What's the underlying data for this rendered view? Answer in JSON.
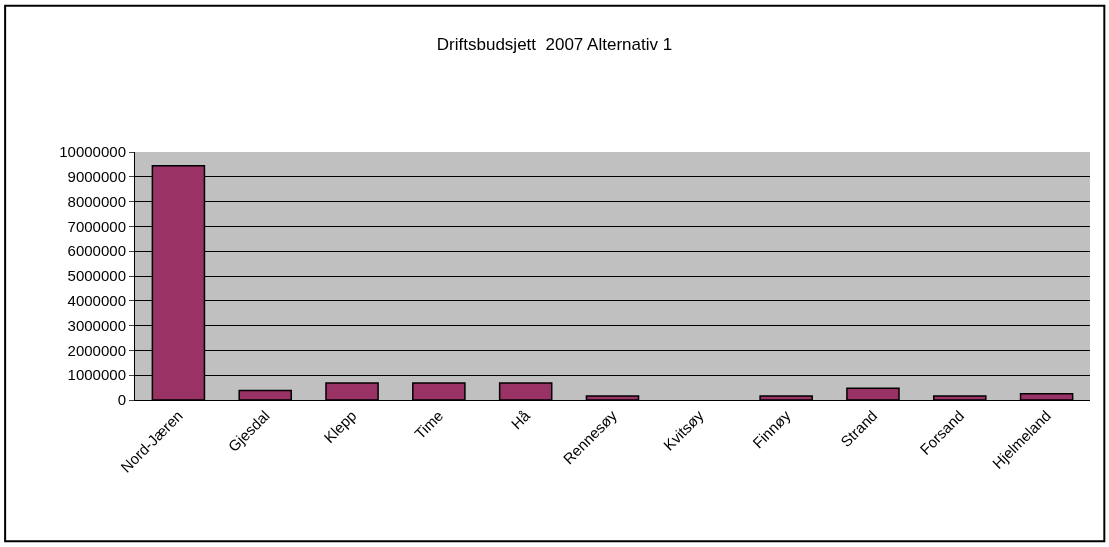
{
  "chart_data": {
    "type": "bar",
    "title": "Driftsbudsjett  2007 Alternativ 1",
    "categories": [
      "Nord-Jæren",
      "Gjesdal",
      "Klepp",
      "Time",
      "Hå",
      "Rennesøy",
      "Kvitsøy",
      "Finnøy",
      "Strand",
      "Forsand",
      "Hjelmeland"
    ],
    "values": [
      9450000,
      380000,
      690000,
      690000,
      690000,
      160000,
      null,
      160000,
      470000,
      160000,
      250000
    ],
    "color": "#993366",
    "ylim": [
      0,
      10000000
    ],
    "yticks": [
      0,
      1000000,
      2000000,
      3000000,
      4000000,
      5000000,
      6000000,
      7000000,
      8000000,
      9000000,
      10000000
    ],
    "grid": "y"
  }
}
